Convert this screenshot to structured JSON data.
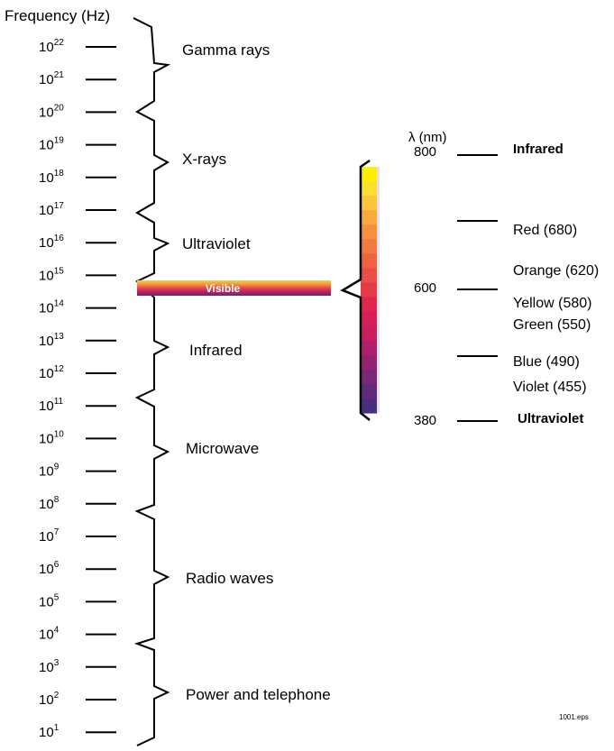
{
  "frequency_axis": {
    "title": "Frequency (Hz)",
    "ticks": [
      {
        "base": "10",
        "exp": "22"
      },
      {
        "base": "10",
        "exp": "21"
      },
      {
        "base": "10",
        "exp": "20"
      },
      {
        "base": "10",
        "exp": "19"
      },
      {
        "base": "10",
        "exp": "18"
      },
      {
        "base": "10",
        "exp": "17"
      },
      {
        "base": "10",
        "exp": "16"
      },
      {
        "base": "10",
        "exp": "15"
      },
      {
        "base": "10",
        "exp": "14"
      },
      {
        "base": "10",
        "exp": "13"
      },
      {
        "base": "10",
        "exp": "12"
      },
      {
        "base": "10",
        "exp": "11"
      },
      {
        "base": "10",
        "exp": "10"
      },
      {
        "base": "10",
        "exp": "9"
      },
      {
        "base": "10",
        "exp": "8"
      },
      {
        "base": "10",
        "exp": "7"
      },
      {
        "base": "10",
        "exp": "6"
      },
      {
        "base": "10",
        "exp": "5"
      },
      {
        "base": "10",
        "exp": "4"
      },
      {
        "base": "10",
        "exp": "3"
      },
      {
        "base": "10",
        "exp": "2"
      },
      {
        "base": "10",
        "exp": "1"
      }
    ]
  },
  "bands": [
    {
      "label": "Gamma rays"
    },
    {
      "label": "X-rays"
    },
    {
      "label": "Ultraviolet"
    },
    {
      "label": "Infrared"
    },
    {
      "label": "Microwave"
    },
    {
      "label": "Radio waves"
    },
    {
      "label": "Power and telephone"
    }
  ],
  "visible_band": {
    "label": "Visible"
  },
  "wavelength_axis": {
    "title": "λ (nm)",
    "ticks": [
      "800",
      "600",
      "380"
    ]
  },
  "colors_legend": [
    {
      "label": "Infrared",
      "bold": true
    },
    {
      "label": "Red (680)"
    },
    {
      "label": "Orange (620)"
    },
    {
      "label": "Yellow (580)"
    },
    {
      "label": "Green (550)"
    },
    {
      "label": "Blue (490)"
    },
    {
      "label": "Violet (455)"
    },
    {
      "label": "Ultraviolet",
      "bold": true
    }
  ],
  "spectrum_colors": [
    "#fff000",
    "#fde02e",
    "#fcc53a",
    "#f9a93e",
    "#f6903f",
    "#f27a40",
    "#ee6441",
    "#ea4e44",
    "#e53a48",
    "#e0264c",
    "#d71e55",
    "#c81e60",
    "#b01f6a",
    "#962272",
    "#7a2777",
    "#5f2b7a",
    "#4a2d7c"
  ],
  "footer": {
    "file_label": "1001.eps"
  }
}
